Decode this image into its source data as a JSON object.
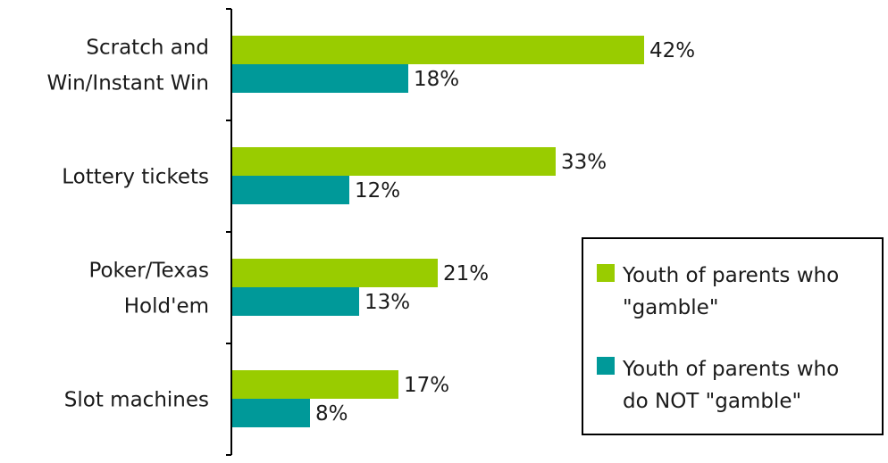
{
  "chart_data": {
    "type": "bar",
    "orientation": "horizontal",
    "categories": [
      [
        "Scratch and",
        "Win/Instant Win"
      ],
      [
        "Lottery tickets"
      ],
      [
        "Poker/Texas",
        "Hold'em"
      ],
      [
        "Slot machines"
      ]
    ],
    "series": [
      {
        "name": [
          "Youth of parents who",
          "\"gamble\""
        ],
        "color": "#99cc00",
        "values": [
          42,
          33,
          21,
          17
        ],
        "labels": [
          "42%",
          "33%",
          "21%",
          "17%"
        ]
      },
      {
        "name": [
          "Youth of parents who",
          "do NOT \"gamble\""
        ],
        "color": "#009999",
        "values": [
          18,
          12,
          13,
          8
        ],
        "labels": [
          "18%",
          "12%",
          "13%",
          "8%"
        ]
      }
    ],
    "xlim": [
      0,
      50
    ],
    "grid": false,
    "legend_position": "bottom-right",
    "title": "",
    "xlabel": "",
    "ylabel": ""
  }
}
